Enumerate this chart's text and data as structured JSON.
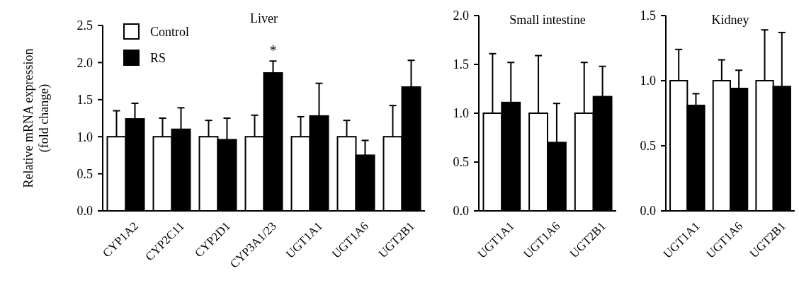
{
  "chart_data": [
    {
      "type": "bar",
      "title": "Liver",
      "ylabel": "Relative mRNA expression\n(fold change)",
      "categories": [
        "CYP1A2",
        "CYP2C11",
        "CYP2D1",
        "CYP3A1/23",
        "UGT1A1",
        "UGT1A6",
        "UGT2B1"
      ],
      "ylim": [
        0,
        2.5
      ],
      "yticks": [
        {
          "value": 0,
          "label": "0.0"
        },
        {
          "value": 0.5,
          "label": "0.5"
        },
        {
          "value": 1,
          "label": "1.0"
        },
        {
          "value": 1.5,
          "label": "1.5"
        },
        {
          "value": 2,
          "label": "2.0"
        },
        {
          "value": 2.5,
          "label": "2.5"
        }
      ],
      "legend": "top left",
      "annotations": [
        {
          "text": "*",
          "x": "CYP3A1/23",
          "y": 2.02
        }
      ],
      "series": [
        {
          "name": "Control",
          "color": "#ffffff",
          "values": [
            1,
            1,
            1,
            1,
            1,
            1,
            1
          ],
          "errors": [
            [
              1,
              1.35
            ],
            [
              1,
              1.25
            ],
            [
              1,
              1.22
            ],
            [
              1,
              1.29
            ],
            [
              1,
              1.27
            ],
            [
              1,
              1.22
            ],
            [
              1,
              1.42
            ]
          ]
        },
        {
          "name": "RS",
          "color": "#000000",
          "values": [
            1.24,
            1.1,
            0.96,
            1.86,
            1.28,
            0.75,
            1.67
          ],
          "errors": [
            [
              1.24,
              1.45
            ],
            [
              1.1,
              1.39
            ],
            [
              0.96,
              1.25
            ],
            [
              1.86,
              2.02
            ],
            [
              1.28,
              1.72
            ],
            [
              0.75,
              0.95
            ],
            [
              1.67,
              2.03
            ]
          ]
        }
      ]
    },
    {
      "type": "bar",
      "title": "Small intestine",
      "categories": [
        "UGT1A1",
        "UGT1A6",
        "UGT2B1"
      ],
      "ylim": [
        0,
        2
      ],
      "yticks": [
        {
          "value": 0,
          "label": "0.0"
        },
        {
          "value": 0.5,
          "label": "0.5"
        },
        {
          "value": 1,
          "label": "1.0"
        },
        {
          "value": 1.5,
          "label": "1.5"
        },
        {
          "value": 2,
          "label": "2.0"
        }
      ],
      "series": [
        {
          "color": "#ffffff",
          "values": [
            1,
            1,
            1
          ],
          "errors": [
            [
              1,
              1.61
            ],
            [
              1,
              1.59
            ],
            [
              1,
              1.52
            ]
          ]
        },
        {
          "color": "#000000",
          "values": [
            1.11,
            0.7,
            1.17
          ],
          "errors": [
            [
              1.11,
              1.52
            ],
            [
              0.7,
              1.1
            ],
            [
              1.17,
              1.48
            ]
          ]
        }
      ]
    },
    {
      "type": "bar",
      "title": "Kidney",
      "categories": [
        "UGT1A1",
        "UGT1A6",
        "UGT2B1"
      ],
      "ylim": [
        0,
        1.5
      ],
      "yticks": [
        {
          "value": 0,
          "label": "0.0"
        },
        {
          "value": 0.5,
          "label": "0.5"
        },
        {
          "value": 1,
          "label": "1.0"
        },
        {
          "value": 1.5,
          "label": "1.5"
        }
      ],
      "series": [
        {
          "color": "#ffffff",
          "values": [
            1,
            1,
            1
          ],
          "errors": [
            [
              1,
              1.24
            ],
            [
              1,
              1.16
            ],
            [
              1,
              1.39
            ]
          ]
        },
        {
          "color": "#000000",
          "values": [
            0.81,
            0.94,
            0.955
          ],
          "errors": [
            [
              0.81,
              0.9
            ],
            [
              0.94,
              1.08
            ],
            [
              0.955,
              1.37
            ]
          ]
        }
      ]
    }
  ]
}
